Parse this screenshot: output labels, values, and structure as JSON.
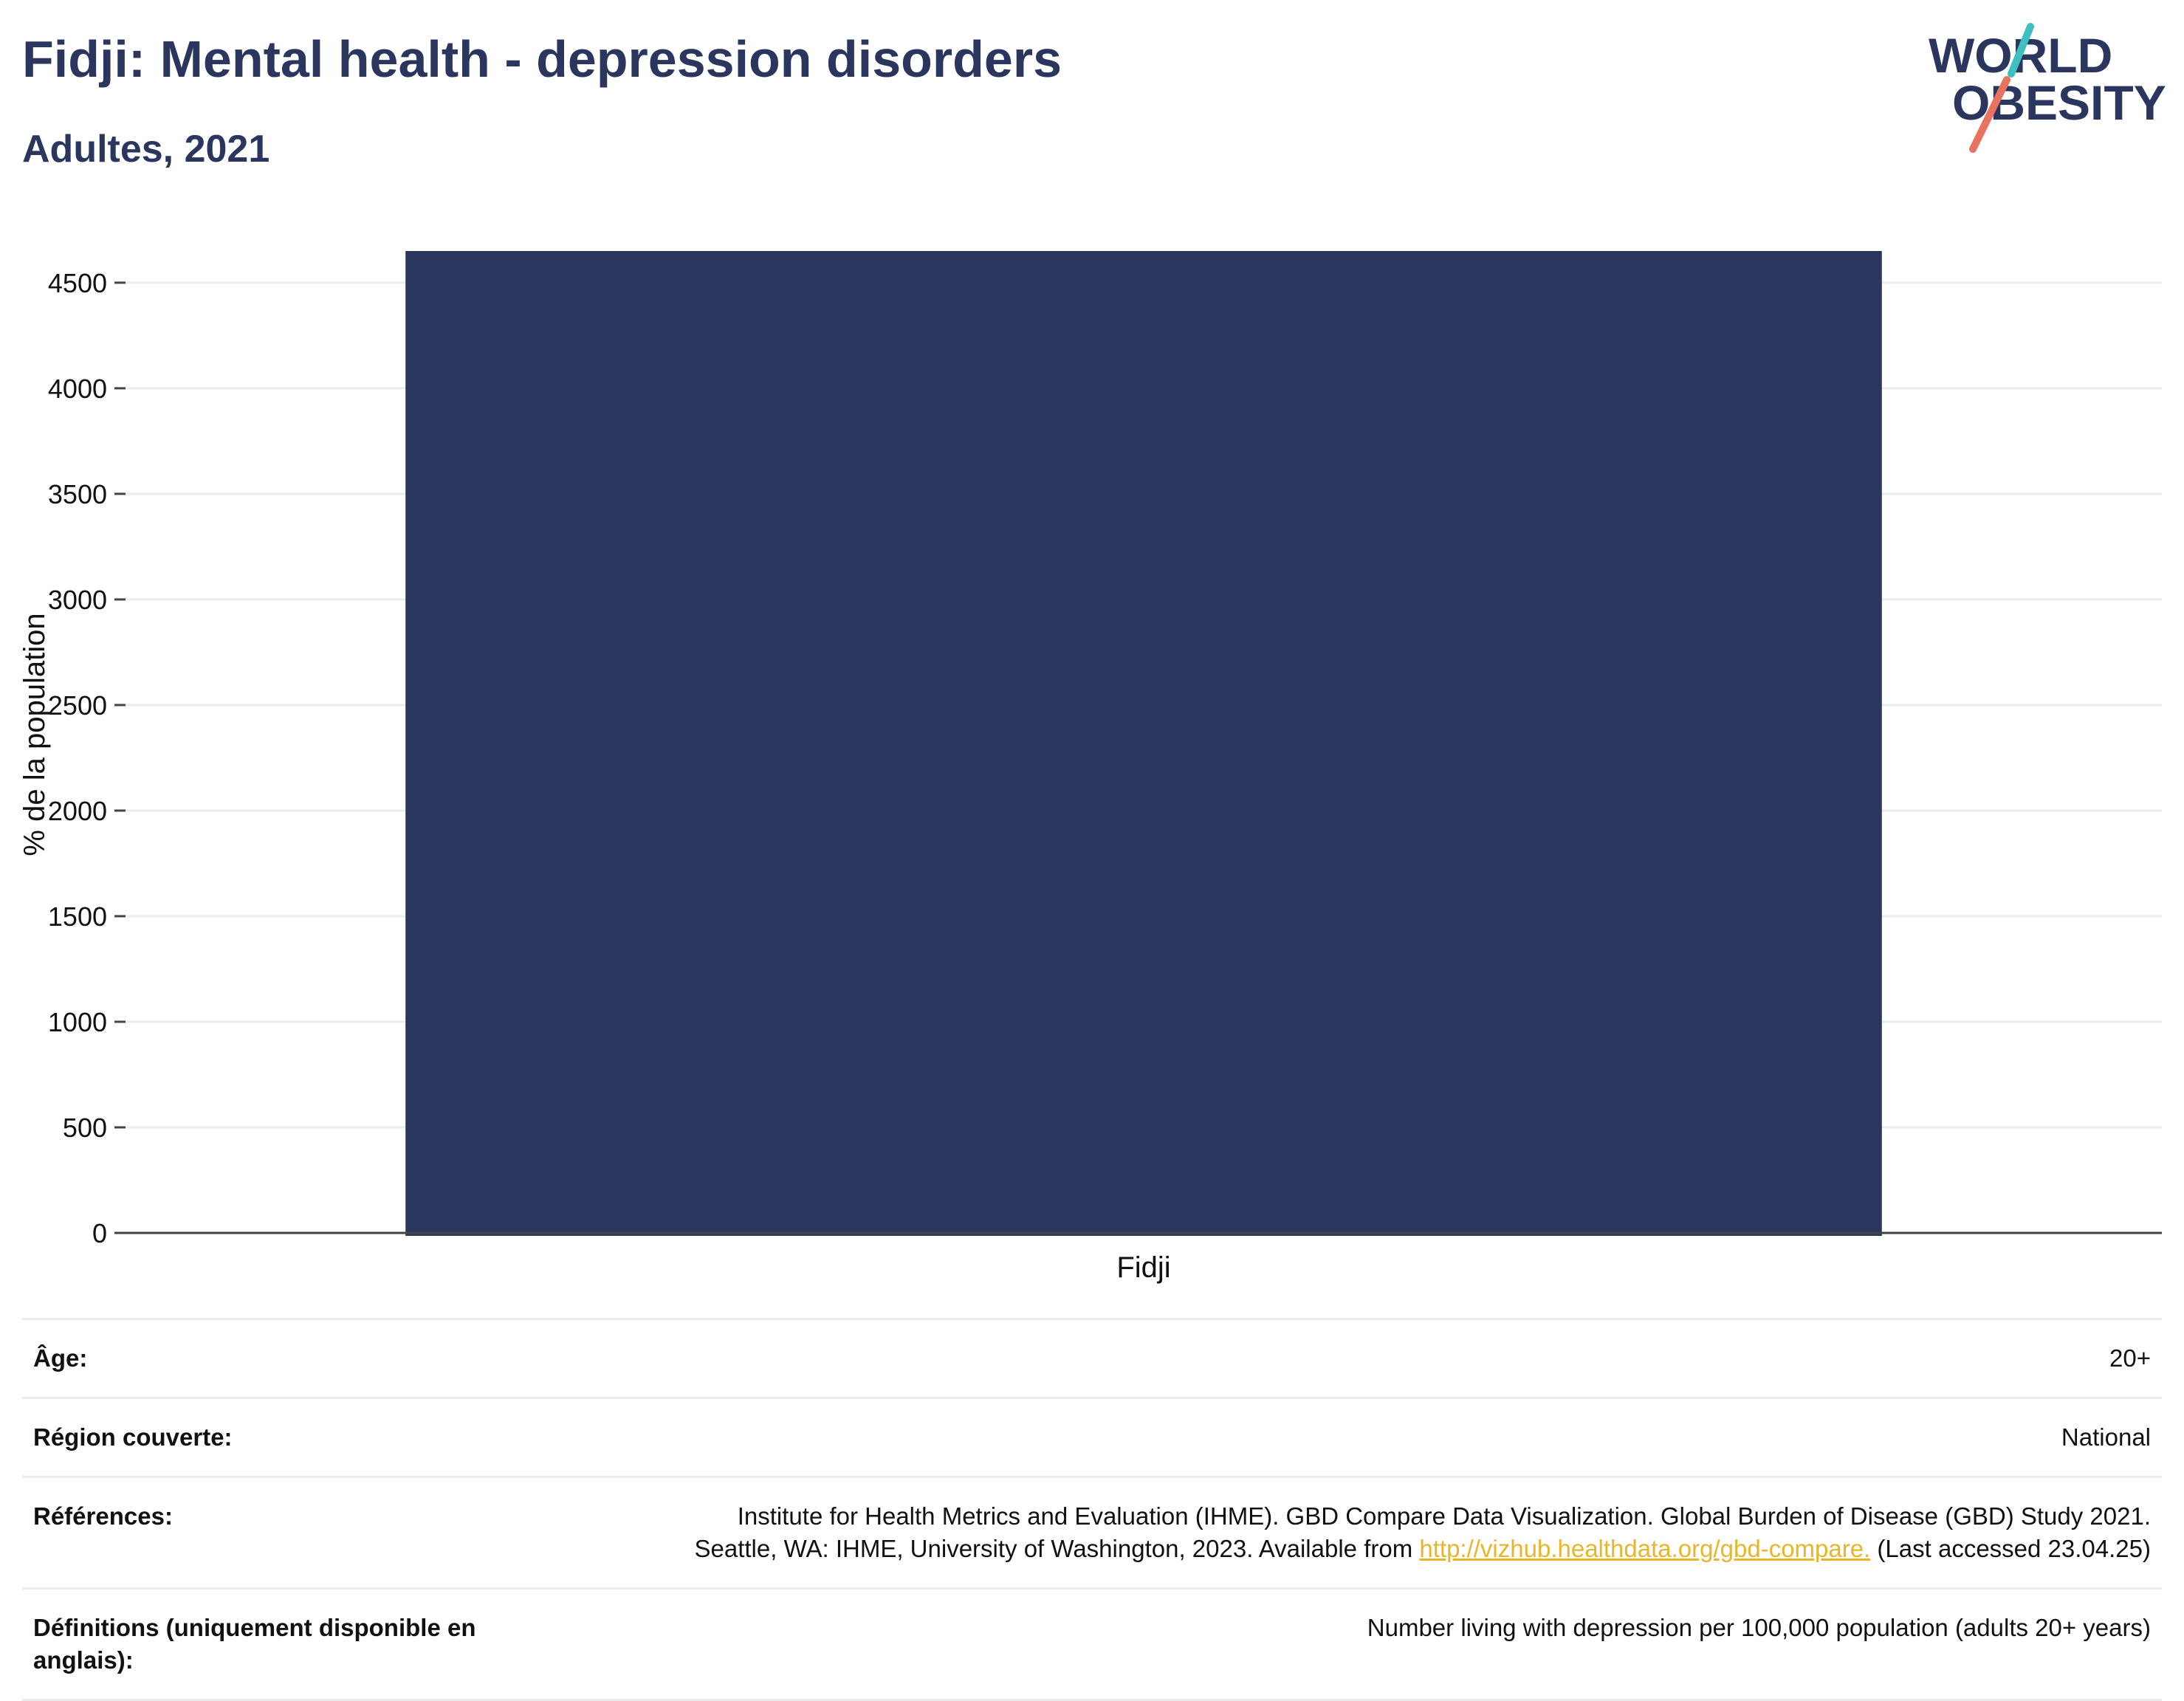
{
  "header": {
    "title": "Fidji: Mental health - depression disorders",
    "subtitle": "Adultes, 2021"
  },
  "logo": {
    "line1": "WORLD",
    "line2": "OBESITY",
    "accent_teal": "#3fbfbf",
    "accent_coral": "#e8735f"
  },
  "colors": {
    "bar": "#2b365e",
    "grid": "#e7edf3",
    "axis": "#444444",
    "link": "#e8b62a"
  },
  "chart_data": {
    "type": "bar",
    "categories": [
      "Fidji"
    ],
    "values": [
      4650
    ],
    "ylabel": "% de la population",
    "ylim": [
      0,
      4650
    ],
    "yticks": [
      0,
      500,
      1000,
      1500,
      2000,
      2500,
      3000,
      3500,
      4000,
      4500
    ],
    "grid": true
  },
  "info": {
    "rows": [
      {
        "label": "Âge:",
        "value": "20+"
      },
      {
        "label": "Région couverte:",
        "value": "National"
      },
      {
        "label": "Références:",
        "value_line1": "Institute for Health Metrics and Evaluation (IHME). GBD Compare Data Visualization. Global Burden of Disease (GBD) Study 2021.",
        "value_line2_pre": "Seattle, WA: IHME, University of Washington, 2023. Available from ",
        "link_text": "http://vizhub.healthdata.org/gbd-compare.",
        "value_line2_post": " (Last accessed 23.04.25)"
      },
      {
        "label": "Définitions (uniquement disponible en anglais):",
        "value": "Number living with depression per 100,000 population (adults 20+ years)"
      }
    ]
  }
}
